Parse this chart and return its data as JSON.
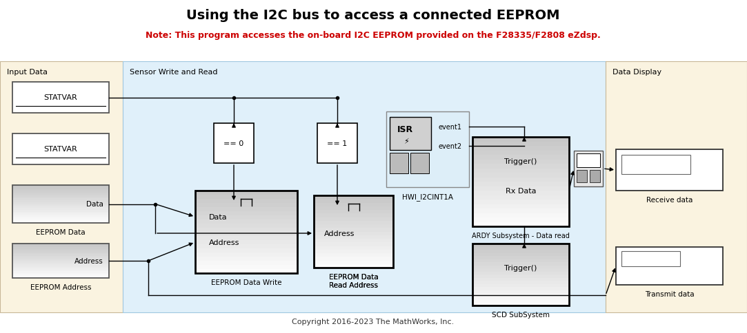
{
  "title": "Using the I2C bus to access a connected EEPROM",
  "note": "Note: This program accesses the on-board I2C EEPROM provided on the F28335/F2808 eZdsp.",
  "note_color": "#cc0000",
  "copyright": "Copyright 2016-2023 The MathWorks, Inc.",
  "bg_color": "#ffffff",
  "input_bg": "#faf3e0",
  "sensor_bg": "#e0f0fa",
  "display_bg": "#faf3e0",
  "input_label": "Input Data",
  "sensor_label": "Sensor Write and Read",
  "display_label": "Data Display"
}
